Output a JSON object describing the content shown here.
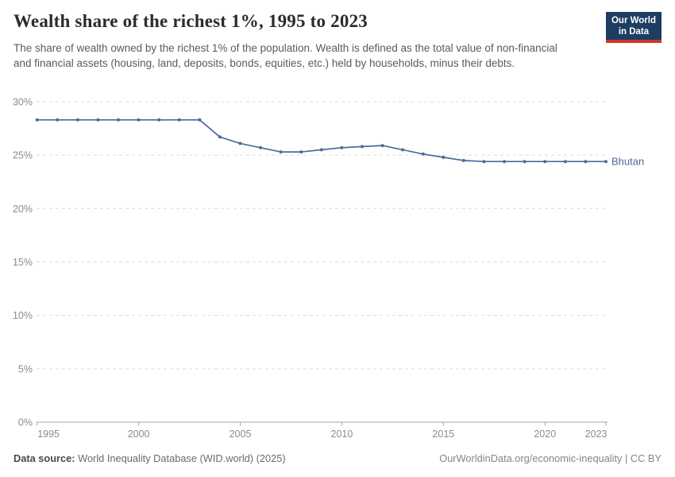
{
  "header": {
    "title": "Wealth share of the richest 1%, 1995 to 2023",
    "subtitle": "The share of wealth owned by the richest 1% of the population. Wealth is defined as the total value of non-financial and financial assets (housing, land, deposits, bonds, equities, etc.) held by households, minus their debts.",
    "logo": {
      "line1": "Our World",
      "line2": "in Data"
    }
  },
  "chart_data": {
    "type": "line",
    "title": "Wealth share of the richest 1%, 1995 to 2023",
    "x": [
      1995,
      1996,
      1997,
      1998,
      1999,
      2000,
      2001,
      2002,
      2003,
      2004,
      2005,
      2006,
      2007,
      2008,
      2009,
      2010,
      2011,
      2012,
      2013,
      2014,
      2015,
      2016,
      2017,
      2018,
      2019,
      2020,
      2021,
      2022,
      2023
    ],
    "series": [
      {
        "name": "Bhutan",
        "color": "#4c6a9c",
        "values": [
          28.3,
          28.3,
          28.3,
          28.3,
          28.3,
          28.3,
          28.3,
          28.3,
          28.3,
          26.7,
          26.1,
          25.7,
          25.3,
          25.3,
          25.5,
          25.7,
          25.8,
          25.9,
          25.5,
          25.1,
          24.8,
          24.5,
          24.4,
          24.4,
          24.4,
          24.4,
          24.4,
          24.4,
          24.4
        ]
      }
    ],
    "xlim": [
      1995,
      2023
    ],
    "ylim": [
      0,
      30
    ],
    "x_ticks": [
      1995,
      2000,
      2005,
      2010,
      2015,
      2020,
      2023
    ],
    "y_ticks": [
      0,
      5,
      10,
      15,
      20,
      25,
      30
    ],
    "y_tick_suffix": "%",
    "grid": "horizontal-dashed",
    "legend_position": "end-of-line",
    "marker": "dot"
  },
  "footer": {
    "source_label": "Data source:",
    "source_value": "World Inequality Database (WID.world) (2025)",
    "link": "OurWorldinData.org/economic-inequality | CC BY"
  },
  "colors": {
    "series_blue": "#4c6a9c",
    "brand_navy": "#1d3d63",
    "brand_red": "#d1342b",
    "grid_gray": "#dcdcdc",
    "axis_gray": "#a7a7a7",
    "tick_text_gray": "#8b8b8b"
  }
}
